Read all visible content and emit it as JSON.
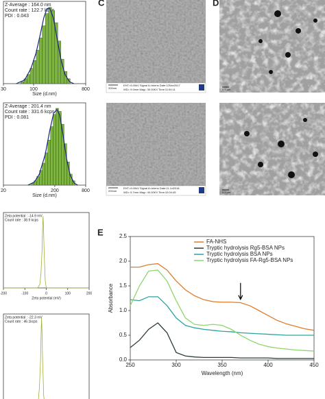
{
  "panel_labels": [
    "C",
    "D",
    "E"
  ],
  "images": {
    "sem": [
      {
        "scale": "200nm",
        "info": [
          "EHT=5.00kV  Signal A=Inlens  Date:12Nov2017",
          "WD= 9.0mm  Mag= 30.00KX  Time:11:54:11"
        ]
      },
      {
        "scale": "200nm",
        "info": [
          "EHT=5.00kV  Signal A=Inlens  Date:11 Jul2018",
          "WD= 5.7mm  Mag= 40.00KX  Time:10:04:45"
        ]
      }
    ],
    "tem": [
      {
        "scale": "0.5 µm"
      },
      {
        "scale": "0.5 µm"
      }
    ]
  },
  "chart_data": [
    {
      "type": "histogram",
      "log_x": true,
      "xlabel": "Size (d.nm)",
      "info": [
        "Z-Average : 164.0 nm",
        "Count rate : 122.7 kcps",
        "PDI : 0.043"
      ],
      "bins": [
        60,
        68,
        77,
        87,
        98,
        111,
        125,
        141,
        160,
        181,
        205,
        232,
        262,
        296,
        335,
        379,
        429
      ],
      "counts": [
        0.3,
        0.8,
        1.5,
        2.5,
        3.8,
        5.5,
        7.5,
        9.5,
        11.5,
        12.5,
        12,
        10,
        7,
        4,
        2,
        0.8
      ],
      "color": "#7cb342",
      "fit_color": "#1a237e",
      "fit": {
        "x": [
          50,
          70,
          90,
          110,
          130,
          150,
          170,
          190,
          220,
          260,
          300,
          350,
          420,
          500
        ],
        "values": [
          0,
          0.6,
          2.5,
          5,
          8,
          10.8,
          12.3,
          12.4,
          10.8,
          7,
          3.8,
          1.5,
          0.3,
          0
        ]
      },
      "xlim": [
        30,
        800
      ],
      "xticks": [
        30,
        100,
        800
      ],
      "ylim": [
        0,
        13.5
      ]
    },
    {
      "type": "histogram",
      "log_x": true,
      "xlabel": "Size (d.nm)",
      "info": [
        "Z-Average : 201.4 nm",
        "Count rate : 331.6 kcps",
        "PDI : 0.081"
      ],
      "bins": [
        70,
        79,
        89,
        101,
        114,
        129,
        146,
        165,
        186,
        210,
        237,
        268,
        303,
        342,
        387,
        437,
        494
      ],
      "counts": [
        0.3,
        0.7,
        1.4,
        2.4,
        3.6,
        5.3,
        7.4,
        9.6,
        11.6,
        12.6,
        12.1,
        10,
        6.8,
        3.8,
        1.8,
        0.7
      ],
      "color": "#7cb342",
      "fit_color": "#1a237e",
      "fit": {
        "x": [
          60,
          80,
          100,
          130,
          160,
          190,
          220,
          250,
          290,
          340,
          400,
          480,
          560
        ],
        "values": [
          0,
          0.5,
          1.8,
          5,
          9,
          11.8,
          12.4,
          11.5,
          8.2,
          4.3,
          1.6,
          0.3,
          0
        ]
      },
      "xlim": [
        20,
        800
      ],
      "xticks": [
        20,
        200,
        800
      ],
      "ylim": [
        0,
        13.5
      ]
    },
    {
      "type": "line",
      "xlabel": "Zeta potential (mV)",
      "info": [
        "Zeta potential : -14.9 mV",
        "Count rate : 38.9 kcps"
      ],
      "x": [
        -200,
        -40,
        -30,
        -25,
        -20,
        -17,
        -15,
        -13,
        -10,
        -5,
        0,
        200
      ],
      "series": [
        {
          "color": "#a0ad35",
          "values": [
            0,
            0,
            0.05,
            0.2,
            0.5,
            0.85,
            1,
            0.85,
            0.5,
            0.1,
            0,
            0
          ]
        }
      ],
      "xlim": [
        -200,
        200
      ],
      "xticks": [
        -200,
        -100,
        0,
        100,
        200
      ],
      "ylim": [
        0,
        1.05
      ]
    },
    {
      "type": "line",
      "info": [
        "Zeta potential : -22.3 mV",
        "Count rate : 46.1kcps"
      ],
      "x": [
        -200,
        -45,
        -37,
        -32,
        -27,
        -24,
        -22,
        -20,
        -17,
        -12,
        -7,
        200
      ],
      "series": [
        {
          "color": "#a0ad35",
          "values": [
            0,
            0,
            0.05,
            0.2,
            0.5,
            0.85,
            1,
            0.85,
            0.5,
            0.1,
            0,
            0
          ]
        }
      ],
      "xlim": [
        -200,
        200
      ],
      "ylim": [
        0,
        1.05
      ]
    },
    {
      "type": "line",
      "xlabel": "Wavelength (nm)",
      "ylabel": "Absorbance",
      "legend": "upper right",
      "x": [
        250,
        260,
        270,
        280,
        290,
        300,
        310,
        320,
        330,
        340,
        350,
        360,
        370,
        380,
        390,
        400,
        410,
        420,
        430,
        440,
        450
      ],
      "series": [
        {
          "name": "FA-NHS",
          "color": "#e07b29",
          "values": [
            1.88,
            1.88,
            1.93,
            1.95,
            1.82,
            1.6,
            1.42,
            1.3,
            1.22,
            1.18,
            1.17,
            1.17,
            1.16,
            1.1,
            1.0,
            0.9,
            0.8,
            0.73,
            0.68,
            0.63,
            0.6
          ]
        },
        {
          "name": "Tryptic hydrolysis Rg5-BSA NPs",
          "color": "#2a3a3a",
          "values": [
            0.25,
            0.4,
            0.62,
            0.75,
            0.55,
            0.15,
            0.08,
            0.06,
            0.05,
            0.05,
            0.05,
            0.05,
            0.04,
            0.04,
            0.04,
            0.04,
            0.03,
            0.03,
            0.03,
            0.03,
            0.03
          ]
        },
        {
          "name": "Tryptic hydrolysis BSA NPs",
          "color": "#2aa3a0",
          "values": [
            1.22,
            1.2,
            1.28,
            1.28,
            1.1,
            0.85,
            0.7,
            0.65,
            0.62,
            0.6,
            0.58,
            0.57,
            0.55,
            0.54,
            0.53,
            0.52,
            0.51,
            0.5,
            0.5,
            0.5,
            0.5
          ]
        },
        {
          "name": "Tryptic hydrolysis FA-Rg5-BSA NPs",
          "color": "#8ed66b",
          "values": [
            1.1,
            1.5,
            1.8,
            1.82,
            1.6,
            1.2,
            0.85,
            0.72,
            0.7,
            0.72,
            0.7,
            0.62,
            0.5,
            0.4,
            0.32,
            0.27,
            0.24,
            0.22,
            0.2,
            0.19,
            0.18
          ]
        }
      ],
      "arrow": {
        "x": 370,
        "y": 1.2
      },
      "xlim": [
        250,
        450
      ],
      "xticks": [
        250,
        300,
        350,
        400,
        450
      ],
      "ylim": [
        0,
        2.5
      ],
      "yticks": [
        {
          "value": 0,
          "label": "0.0"
        },
        0.5,
        {
          "value": 1,
          "label": "1.0"
        },
        1.5,
        {
          "value": 2,
          "label": "2.0"
        },
        2.5
      ]
    }
  ]
}
